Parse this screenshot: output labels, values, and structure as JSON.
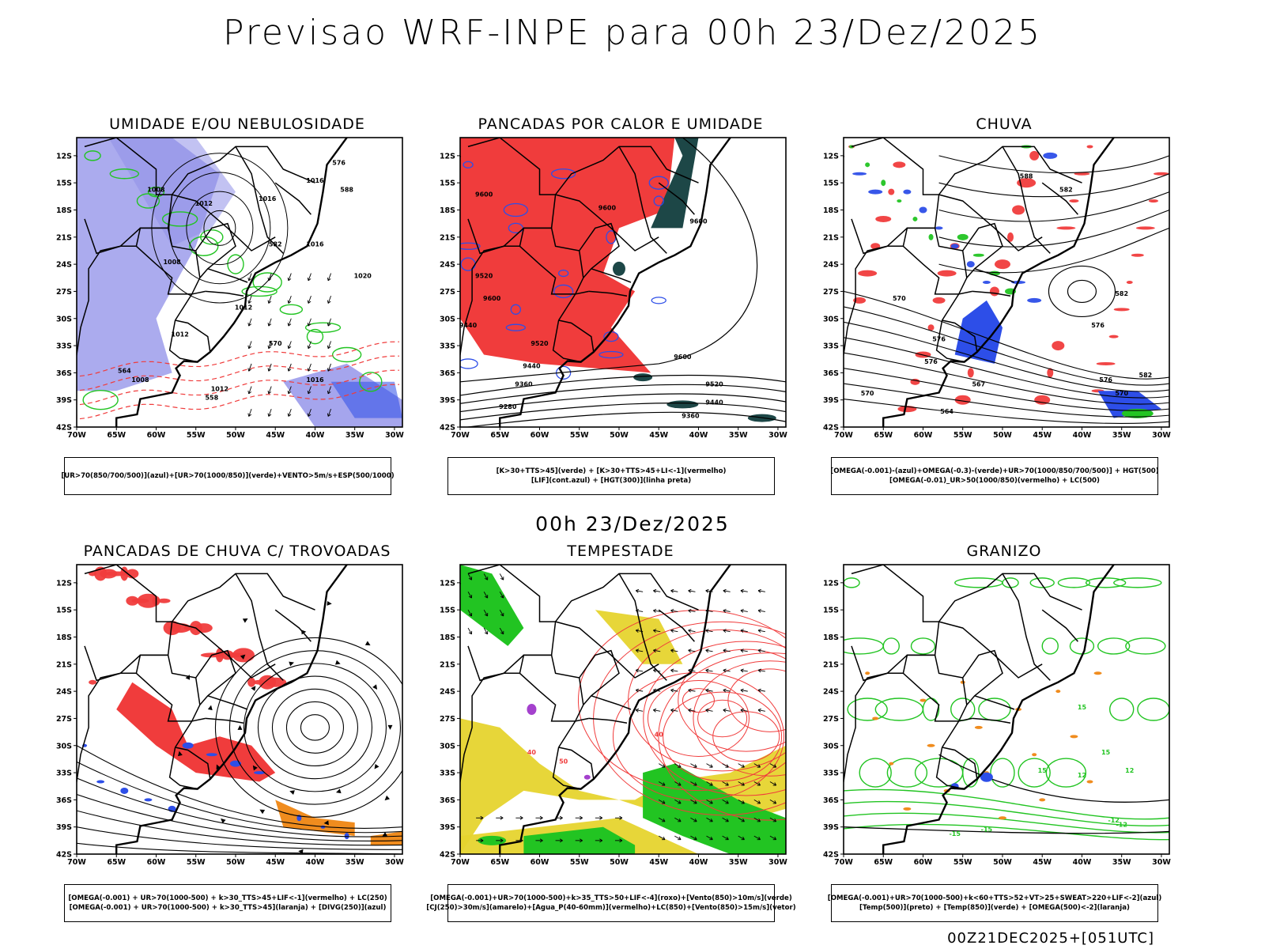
{
  "title": "Previsao WRF-INPE  para 00h 23/Dez/2025",
  "subtitle": "00h 23/Dez/2025",
  "footer": "00Z21DEC2025+[051UTC]",
  "axes": {
    "y_ticks": [
      "12S",
      "15S",
      "18S",
      "21S",
      "24S",
      "27S",
      "30S",
      "33S",
      "36S",
      "39S",
      "42S"
    ],
    "x_ticks": [
      "70W",
      "65W",
      "60W",
      "55W",
      "50W",
      "45W",
      "40W",
      "35W",
      "30W"
    ]
  },
  "colors": {
    "red": "#f03c3c",
    "blue": "#2d4ee8",
    "green": "#22c422",
    "yellow": "#e6d42e",
    "orange": "#f08c1e",
    "lavender": "#8f8fe8",
    "darkteal": "#1d4747",
    "purple": "#9a2cc8"
  },
  "panels": [
    {
      "title": "UMIDADE E/OU NEBULOSIDADE",
      "legend": [
        "[UR>70(850/700/500)](azul)+[UR>70(1000/850)](verde)+VENTO>5m/s+ESP(500/1000)"
      ],
      "contour_labels": [
        "1008",
        "1012",
        "1016",
        "1016",
        "1012",
        "1008",
        "1012",
        "1016",
        "1020",
        "1008",
        "1012",
        "1016",
        "576",
        "570",
        "564",
        "558",
        "588",
        "582"
      ]
    },
    {
      "title": "PANCADAS POR CALOR E UMIDADE",
      "legend": [
        "[K>30+TTS>45](verde) + [K>30+TTS>45+LI<-1](vermelho)",
        "[LIF](cont.azul) + [HGT(300)](linha preta)"
      ],
      "contour_labels": [
        "9600",
        "9600",
        "9600",
        "9520",
        "9600",
        "9440",
        "9520",
        "9440",
        "9360",
        "9280",
        "9600",
        "9520",
        "9440",
        "9360"
      ]
    },
    {
      "title": "CHUVA",
      "legend": [
        "[OMEGA(-0.001)-(azul)+OMEGA(-0.3)-(verde)+UR>70(1000/850/700/500)] + HGT(500)",
        "[OMEGA(-0.01)_UR>50(1000/850)(vermelho) + LC(500)"
      ],
      "contour_labels": [
        "588",
        "582",
        "576",
        "582",
        "576",
        "570",
        "564",
        "576",
        "570",
        "567",
        "582",
        "576",
        "570"
      ]
    },
    {
      "title": "PANCADAS DE CHUVA C/ TROVOADAS",
      "legend": [
        "[OMEGA(-0.001) + UR>70(1000-500) + k>30_TTS>45+LIF<-1](vermelho) + LC(250)",
        "[OMEGA(-0.001) + UR>70(1000-500) + k>30_TTS>45](laranja) + [DIVG(250)](azul)"
      ],
      "contour_labels": []
    },
    {
      "title": "TEMPESTADE",
      "legend": [
        "[OMEGA(-0.001)+UR>70(1000-500)+k>35_TTS>50+LIF<-4](roxo)+[Vento(850)>10m/s](verde)",
        "[CJ(250)>30m/s](amarelo)+[Agua_P(40-60mm)](vermelho)+LC(850)+[Vento(850)>15m/s](vetor)"
      ],
      "contour_labels": [
        "40",
        "50",
        "40"
      ]
    },
    {
      "title": "GRANIZO",
      "legend": [
        "[OMEGA(-0.001)+UR>70(1000-500)+k<60+TTS>52+VT>25+SWEAT>220+LIF<-2](azul)",
        "[Temp(500)](preto) + [Temp(850)](verde) + [OMEGA(500)<-2](laranja)"
      ],
      "contour_labels": [
        "15",
        "15",
        "12",
        "12",
        "15",
        "-12",
        "-15",
        "-15",
        "-12"
      ]
    }
  ]
}
